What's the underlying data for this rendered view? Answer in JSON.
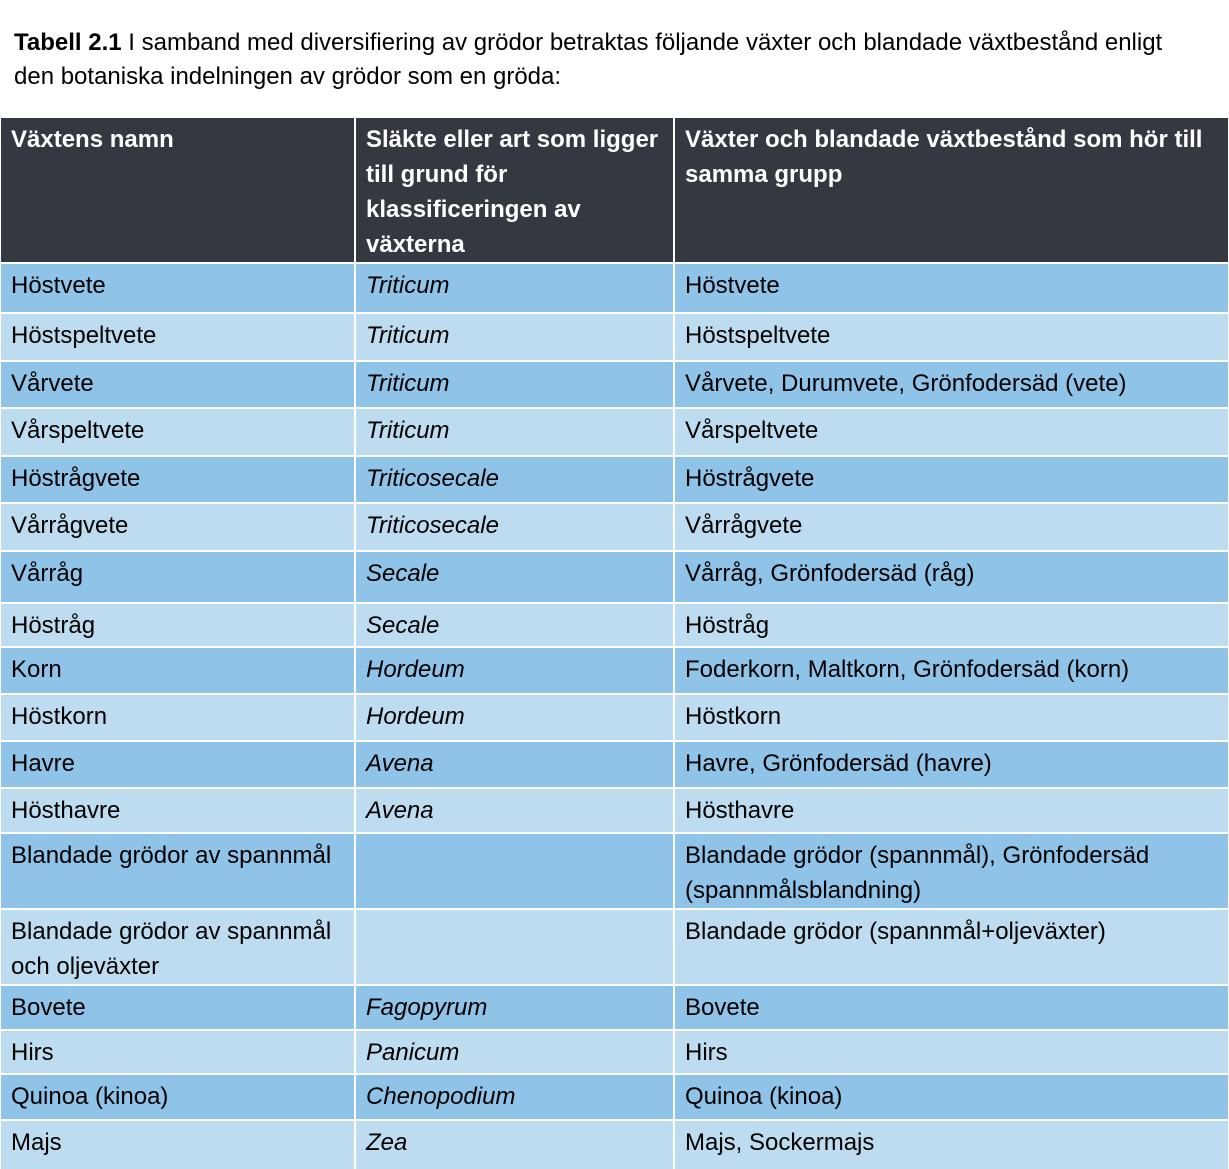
{
  "caption": {
    "label": "Tabell 2.1",
    "text": " I samband med diversifiering av grödor betraktas följande växter och blandade växtbestånd enligt den botaniska indelningen av grödor som en gröda:"
  },
  "table": {
    "headers": [
      "Växtens namn",
      "Släkte eller art som ligger till grund för klassificeringen av växterna",
      "Växter och blandade växtbestånd som hör till samma grupp"
    ],
    "rows": [
      [
        "Höstvete",
        "Triticum",
        "Höstvete"
      ],
      [
        "Höstspeltvete",
        "Triticum",
        "Höstspeltvete"
      ],
      [
        "Vårvete",
        "Triticum",
        "Vårvete,  Durumvete, Grönfodersäd (vete)"
      ],
      [
        "Vårspeltvete",
        "Triticum",
        "Vårspeltvete"
      ],
      [
        "Höstrågvete",
        "Triticosecale",
        "Höstrågvete"
      ],
      [
        "Vårrågvete",
        "Triticosecale",
        "Vårrågvete"
      ],
      [
        "Vårråg",
        "Secale",
        "Vårråg, Grönfodersäd (råg)"
      ],
      [
        "Höstråg",
        "Secale",
        "Höstråg"
      ],
      [
        "Korn",
        "Hordeum",
        "Foderkorn, Maltkorn, Grönfodersäd (korn)"
      ],
      [
        "Höstkorn",
        "Hordeum",
        "Höstkorn"
      ],
      [
        "Havre",
        "Avena",
        "Havre, Grönfodersäd (havre)"
      ],
      [
        "Hösthavre",
        "Avena",
        "Hösthavre"
      ],
      [
        "Blandade grödor av spannmål",
        "",
        "Blandade grödor (spannmål), Grönfodersäd (spannmålsblandning)"
      ],
      [
        "Blandade grödor av spannmål och oljeväxter",
        "",
        "Blandade grödor (spannmål+oljeväxter)"
      ],
      [
        "Bovete",
        "Fagopyrum",
        "Bovete"
      ],
      [
        "Hirs",
        "Panicum",
        "Hirs"
      ],
      [
        "Quinoa (kinoa)",
        "Chenopodium",
        "Quinoa (kinoa)"
      ],
      [
        "Majs",
        "Zea",
        "Majs, Sockermajs"
      ]
    ]
  },
  "colors": {
    "header_bg": "#343841",
    "row_dark": "#8fc3e7",
    "row_light": "#bddcf0"
  }
}
